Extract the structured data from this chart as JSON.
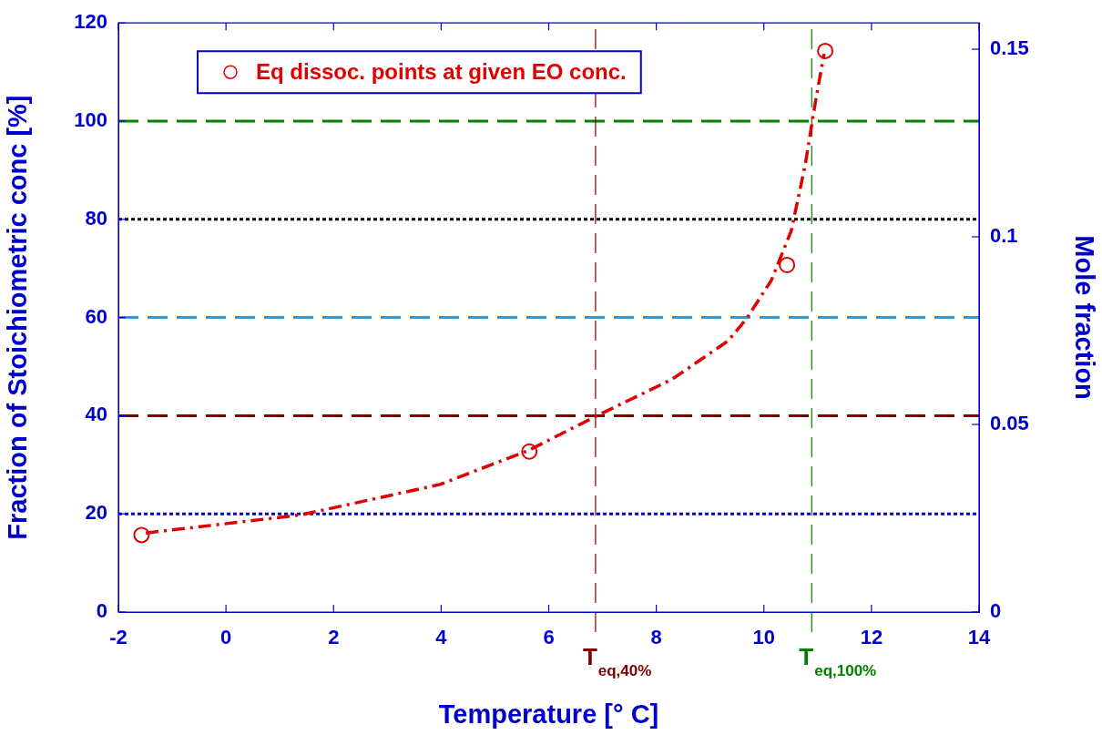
{
  "chart_data": {
    "type": "line",
    "xlabel": "Temperature [° C]",
    "ylabel": "Fraction of Stoichiometric conc [%]",
    "y2label": "Mole fraction",
    "xlim": [
      -2,
      14
    ],
    "xticks": [
      -2,
      0,
      2,
      4,
      6,
      8,
      10,
      12,
      14
    ],
    "ylim": [
      0,
      120
    ],
    "yticks": [
      0,
      20,
      40,
      60,
      80,
      100,
      120
    ],
    "y2lim": [
      0,
      0.157
    ],
    "y2ticks": [
      0,
      0.05,
      0.1,
      0.15
    ],
    "grid": false,
    "legend": "top left",
    "series": [
      {
        "type": "line",
        "color": "#e00000",
        "line_style": "dashed",
        "marker": "none",
        "x": [
          -1.49,
          1.4,
          3.98,
          5.62,
          6.9,
          8.29,
          9.33,
          9.68,
          10.14,
          10.51,
          10.77,
          10.97,
          11.12
        ],
        "values": [
          16.1,
          19.8,
          26,
          32.9,
          40,
          47.4,
          55.2,
          59.8,
          67.6,
          77.7,
          91.2,
          104.7,
          113.7
        ]
      },
      {
        "type": "scatter",
        "name": "Eq dissoc. points at given EO conc.",
        "color": "#e00000",
        "marker": "circle",
        "x": [
          -1.57,
          5.64,
          10.43,
          11.14
        ],
        "values": [
          15.7,
          32.7,
          70.7,
          114.3
        ]
      }
    ],
    "ref_lines": [
      {
        "axis": "y",
        "value": 100,
        "color": "#008000",
        "line_style": "dashed"
      },
      {
        "axis": "y",
        "value": 80,
        "color": "#000000",
        "line_style": "dotted"
      },
      {
        "axis": "y",
        "value": 60,
        "color": "#1fa0e0",
        "line_style": "dashed"
      },
      {
        "axis": "y",
        "value": 40,
        "color": "#800000",
        "line_style": "dashed"
      },
      {
        "axis": "y",
        "value": 20,
        "color": "#0000cc",
        "line_style": "dotted"
      },
      {
        "axis": "x",
        "value": 6.87,
        "label": "T$_{eq,40%}$",
        "color": "#800000",
        "line_style": "dashed"
      },
      {
        "axis": "x",
        "value": 10.89,
        "label": "T$_{eq,100%}$",
        "color": "#008000",
        "line_style": "dashed"
      }
    ]
  }
}
